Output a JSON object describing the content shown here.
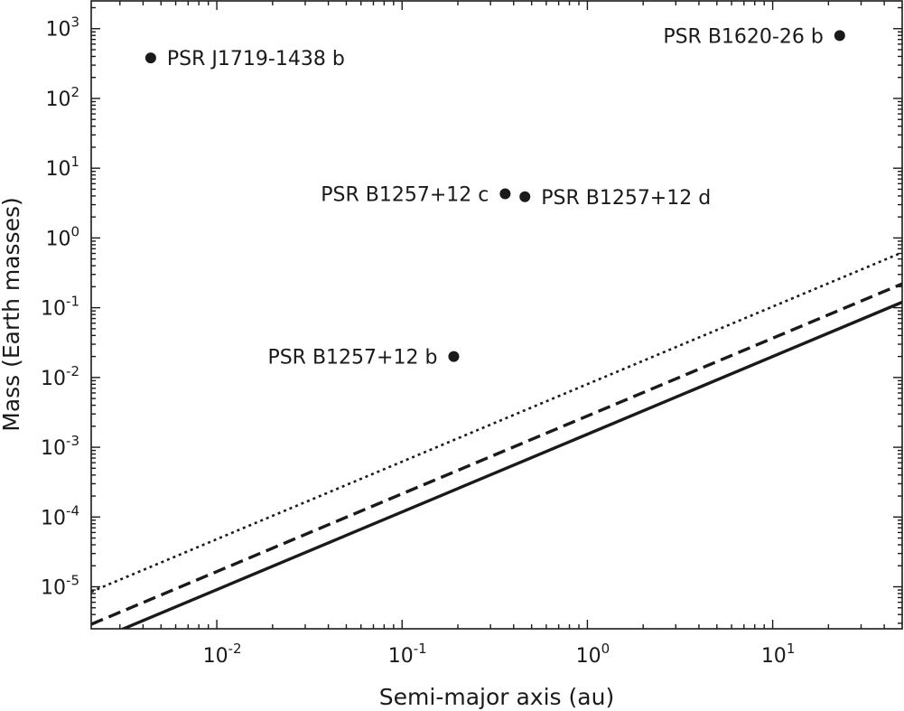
{
  "chart_data": {
    "type": "scatter",
    "xlabel": "Semi-major axis (au)",
    "ylabel": "Mass (Earth masses)",
    "x_scale": "log",
    "y_scale": "log",
    "xlim": [
      0.0021,
      50
    ],
    "ylim": [
      2.5e-06,
      2500
    ],
    "x_ticks": [
      {
        "base": "10",
        "exp": "-2",
        "value": 0.01
      },
      {
        "base": "10",
        "exp": "-1",
        "value": 0.1
      },
      {
        "base": "10",
        "exp": "0",
        "value": 1
      },
      {
        "base": "10",
        "exp": "1",
        "value": 10
      }
    ],
    "y_ticks": [
      {
        "base": "10",
        "exp": "-5",
        "value": 1e-05
      },
      {
        "base": "10",
        "exp": "-4",
        "value": 0.0001
      },
      {
        "base": "10",
        "exp": "-3",
        "value": 0.001
      },
      {
        "base": "10",
        "exp": "-2",
        "value": 0.01
      },
      {
        "base": "10",
        "exp": "-1",
        "value": 0.1
      },
      {
        "base": "10",
        "exp": "0",
        "value": 1
      },
      {
        "base": "10",
        "exp": "1",
        "value": 10
      },
      {
        "base": "10",
        "exp": "2",
        "value": 100
      },
      {
        "base": "10",
        "exp": "3",
        "value": 1000
      }
    ],
    "points": [
      {
        "label": "PSR J1719-1438 b",
        "x": 0.0044,
        "y": 380,
        "label_side": "right"
      },
      {
        "label": "PSR B1620-26 b",
        "x": 23,
        "y": 795,
        "label_side": "left"
      },
      {
        "label": "PSR B1257+12 c",
        "x": 0.36,
        "y": 4.3,
        "label_side": "left"
      },
      {
        "label": "PSR B1257+12 d",
        "x": 0.46,
        "y": 3.9,
        "label_side": "right"
      },
      {
        "label": "PSR B1257+12 b",
        "x": 0.19,
        "y": 0.02,
        "label_side": "left"
      }
    ],
    "lines": [
      {
        "style": "solid",
        "x": [
          0.0021,
          50
        ],
        "y": [
          1.6e-06,
          0.12
        ]
      },
      {
        "style": "dashed",
        "x": [
          0.0021,
          50
        ],
        "y": [
          2.9e-06,
          0.22
        ]
      },
      {
        "style": "dotted",
        "x": [
          0.0021,
          50
        ],
        "y": [
          8.5e-06,
          0.62
        ]
      }
    ],
    "grid": false,
    "legend": "none"
  }
}
